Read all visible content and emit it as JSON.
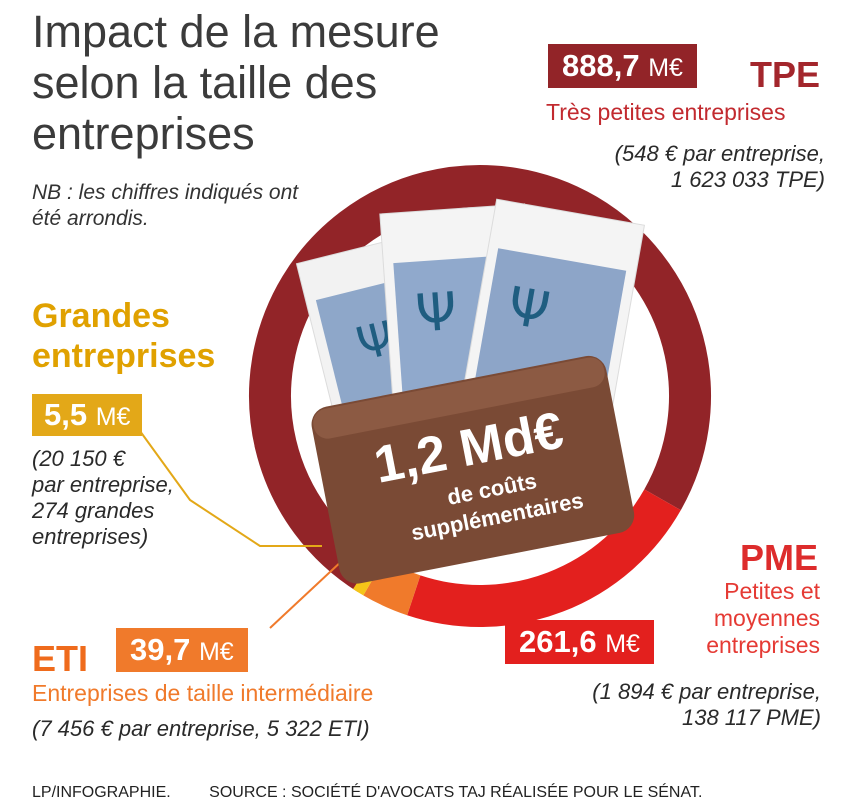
{
  "title": "Impact de la mesure selon la taille des entreprises",
  "note": "NB : les chiffres indiqués ont été arrondis.",
  "center": {
    "total": "1,2 Md€",
    "caption_line1": "de coûts",
    "caption_line2": "supplémentaires"
  },
  "segments": {
    "tpe": {
      "value": "888,7",
      "unit": "M€",
      "name": "TPE",
      "full_name": "Très petites entreprises",
      "detail_line1": "(548 € par entreprise,",
      "detail_line2": "1 623 033 TPE)",
      "color": "#922428"
    },
    "pme": {
      "value": "261,6",
      "unit": "M€",
      "name": "PME",
      "full_name_line1": "Petites et",
      "full_name_line2": "moyennes",
      "full_name_line3": "entreprises",
      "detail_line1": "(1 894 € par entreprise,",
      "detail_line2": "138 117 PME)",
      "color": "#e3201e"
    },
    "eti": {
      "value": "39,7",
      "unit": "M€",
      "name": "ETI",
      "full_name": "Entreprises de taille intermédiaire",
      "detail": "(7 456 € par entreprise, 5 322 ETI)",
      "color": "#f07a2b"
    },
    "grandes": {
      "value": "5,5",
      "unit": "M€",
      "name_line1": "Grandes",
      "name_line2": "entreprises",
      "detail_line1": "(20 150 €",
      "detail_line2": "par entreprise,",
      "detail_line3": "274 grandes",
      "detail_line4": "entreprises)",
      "color": "#f5c518"
    }
  },
  "footer": {
    "credit": "LP/INFOGRAPHIE.",
    "source": "SOURCE : SOCIÉTÉ D'AVOCATS TAJ RÉALISÉE POUR LE SÉNAT."
  },
  "chart_data": {
    "type": "pie",
    "style": "donut",
    "categories": [
      "TPE",
      "PME",
      "ETI",
      "Grandes entreprises"
    ],
    "values": [
      888.7,
      261.6,
      39.7,
      5.5
    ],
    "unit": "M€",
    "colors": [
      "#922428",
      "#e3201e",
      "#f07a2b",
      "#f5c518"
    ],
    "title": "Impact de la mesure selon la taille des entreprises"
  }
}
